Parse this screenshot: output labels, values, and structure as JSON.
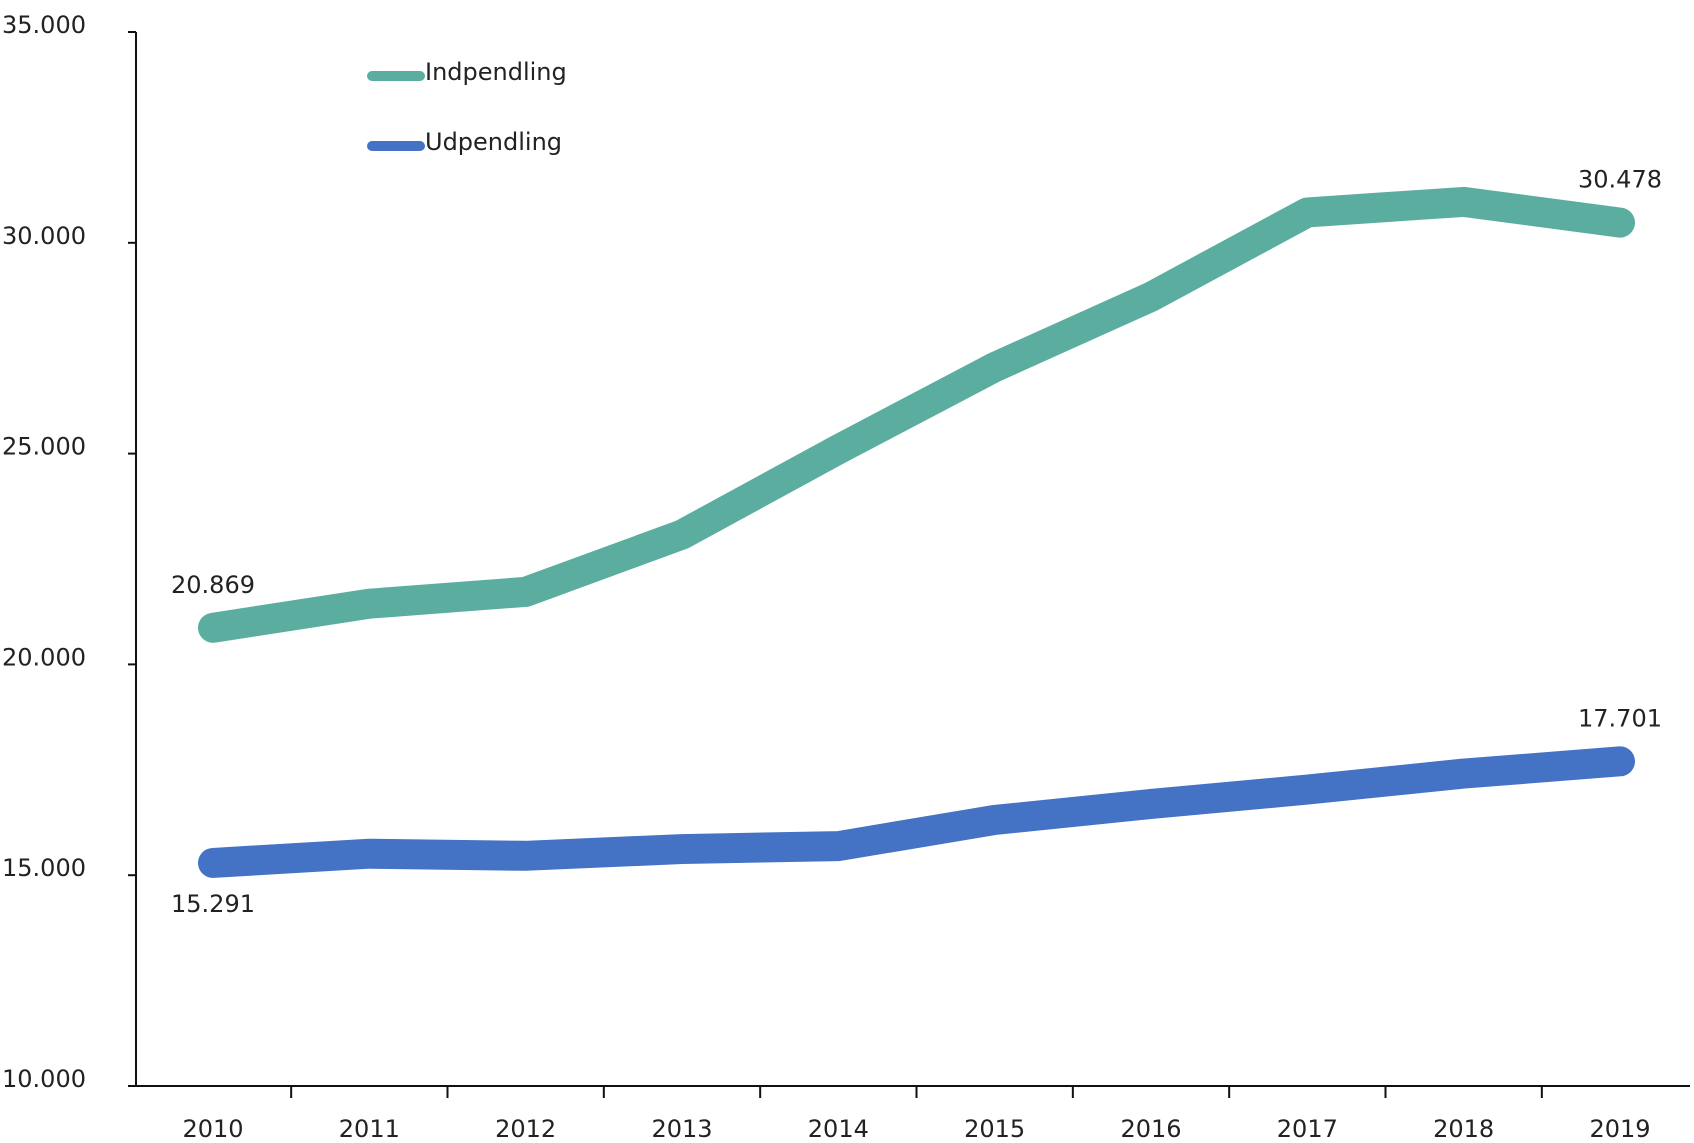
{
  "chart_data": {
    "type": "line",
    "categories": [
      "2010",
      "2011",
      "2012",
      "2013",
      "2014",
      "2015",
      "2016",
      "2017",
      "2018",
      "2019"
    ],
    "series": [
      {
        "name": "Indpendling",
        "color": "#5bae9f",
        "values": [
          20869,
          21440,
          21720,
          23080,
          25100,
          27050,
          28720,
          30720,
          30970,
          30478
        ],
        "value_labels": [
          "20.869",
          null,
          null,
          null,
          null,
          null,
          null,
          null,
          null,
          "30.478"
        ]
      },
      {
        "name": "Udpendling",
        "color": "#4472c4",
        "values": [
          15291,
          15510,
          15460,
          15620,
          15690,
          16310,
          16690,
          17030,
          17410,
          17701
        ],
        "value_labels": [
          "15.291",
          null,
          null,
          null,
          null,
          null,
          null,
          null,
          null,
          "17.701"
        ]
      }
    ],
    "ylim": [
      10000,
      35000
    ],
    "yticks": [
      {
        "value": 10000,
        "label": "10.000"
      },
      {
        "value": 15000,
        "label": "15.000"
      },
      {
        "value": 20000,
        "label": "20.000"
      },
      {
        "value": 25000,
        "label": "25.000"
      },
      {
        "value": 30000,
        "label": "30.000"
      },
      {
        "value": 35000,
        "label": "35.000"
      }
    ],
    "grid": false,
    "legend": "top-left"
  }
}
